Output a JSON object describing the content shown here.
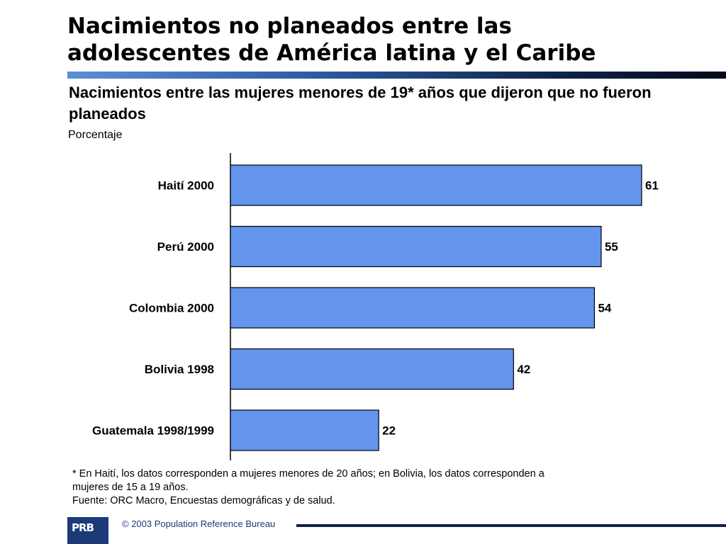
{
  "header": {
    "title_line1": "Nacimientos no planeados entre las",
    "title_line2": "adolescentes de América latina y el Caribe"
  },
  "chart_data": {
    "type": "bar",
    "orientation": "horizontal",
    "title": "Nacimientos entre las mujeres menores de 19* años que dijeron que no fueron planeados",
    "ylabel": "Porcentaje",
    "categories": [
      "Haití 2000",
      "Perú 2000",
      "Colombia 2000",
      "Bolivia 1998",
      "Guatemala 1998/1999"
    ],
    "values": [
      61,
      55,
      54,
      42,
      22
    ],
    "xlim": [
      0,
      70
    ],
    "grid": false,
    "legend": "none",
    "bar_color": "#6495ed"
  },
  "notes": {
    "line1": "* En Haití, los datos corresponden a mujeres menores de 20 años; en Bolivia, los datos corresponden a",
    "line2": "mujeres de 15 a 19 años.",
    "line3": "Fuente: ORC Macro, Encuestas demográficas y de salud."
  },
  "footer": {
    "logo_text": "PRB",
    "copyright": "© 2003 Population Reference Bureau"
  }
}
